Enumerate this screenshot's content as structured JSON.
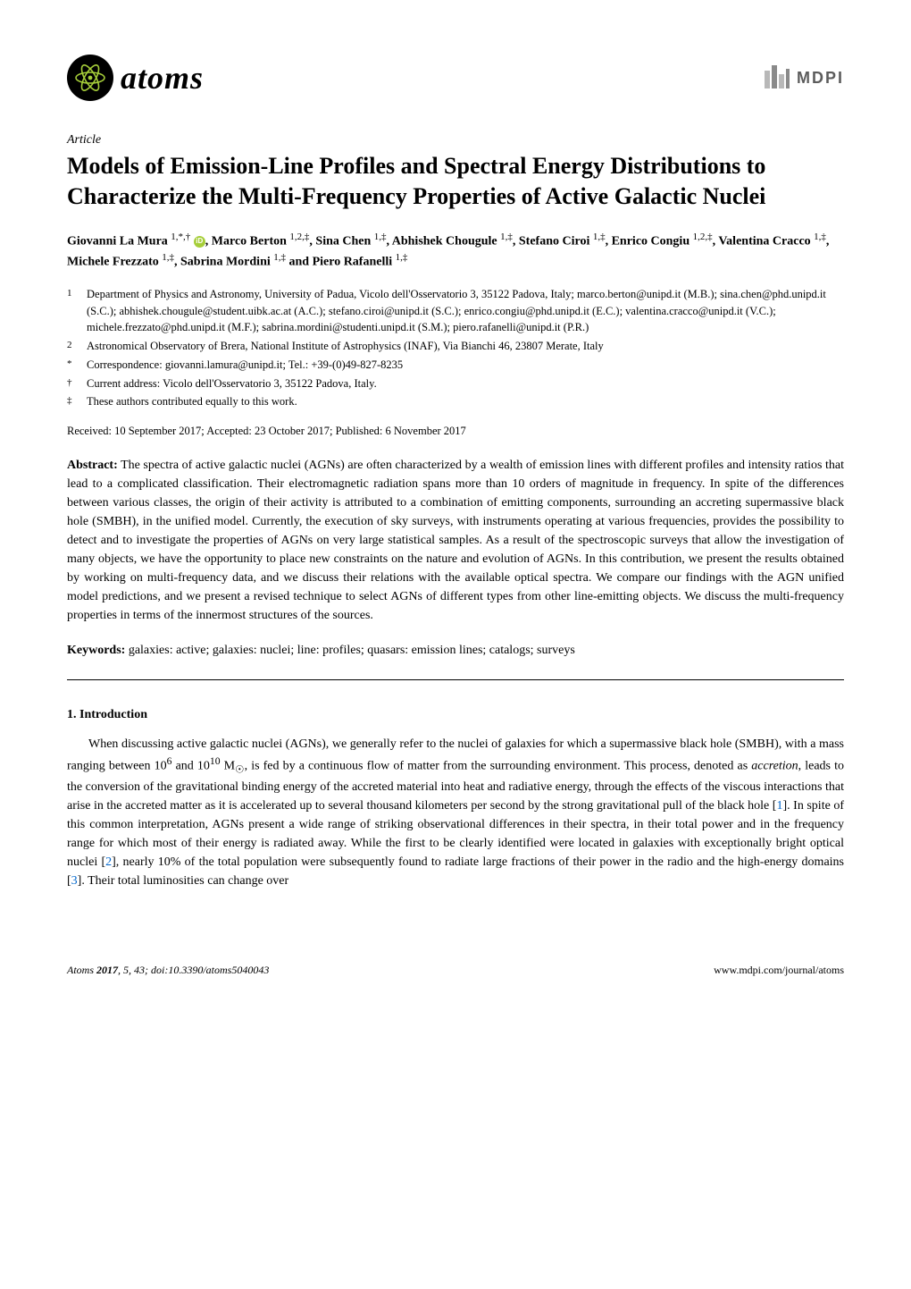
{
  "header": {
    "journal_name": "atoms",
    "publisher": "MDPI",
    "colors": {
      "atom_bg": "#000000",
      "atom_orbit": "#a6ce39",
      "mdpi_text": "#5c5c5c"
    }
  },
  "article_type": "Article",
  "title": "Models of Emission-Line Profiles and Spectral Energy Distributions to Characterize the Multi-Frequency Properties of Active Galactic Nuclei",
  "authors_html": "Giovanni La Mura <sup>1,*,†</sup> <span class='orcid-icon' data-name='orcid-icon' data-interactable='false'></span>, Marco Berton <sup>1,2,‡</sup>, Sina Chen <sup>1,‡</sup>, Abhishek Chougule <sup>1,‡</sup>, Stefano Ciroi <sup>1,‡</sup>, Enrico Congiu <sup>1,2,‡</sup>, Valentina Cracco <sup>1,‡</sup>, Michele Frezzato <sup>1,‡</sup>, Sabrina Mordini <sup>1,‡</sup> and Piero Rafanelli <sup>1,‡</sup>",
  "affiliations": [
    {
      "marker": "1",
      "text": "Department of Physics and Astronomy, University of Padua, Vicolo dell'Osservatorio 3, 35122 Padova, Italy; marco.berton@unipd.it (M.B.); sina.chen@phd.unipd.it (S.C.); abhishek.chougule@student.uibk.ac.at (A.C.); stefano.ciroi@unipd.it (S.C.); enrico.congiu@phd.unipd.it (E.C.); valentina.cracco@unipd.it (V.C.); michele.frezzato@phd.unipd.it (M.F.); sabrina.mordini@studenti.unipd.it (S.M.); piero.rafanelli@unipd.it (P.R.)"
    },
    {
      "marker": "2",
      "text": "Astronomical Observatory of Brera, National Institute of Astrophysics (INAF), Via Bianchi 46, 23807 Merate, Italy"
    },
    {
      "marker": "*",
      "text": "Correspondence: giovanni.lamura@unipd.it; Tel.: +39-(0)49-827-8235"
    },
    {
      "marker": "†",
      "text": "Current address: Vicolo dell'Osservatorio 3, 35122 Padova, Italy."
    },
    {
      "marker": "‡",
      "text": "These authors contributed equally to this work."
    }
  ],
  "received_line": "Received: 10 September 2017; Accepted: 23 October 2017; Published: 6 November 2017",
  "abstract": {
    "label": "Abstract:",
    "text": " The spectra of active galactic nuclei (AGNs) are often characterized by a wealth of emission lines with different profiles and intensity ratios that lead to a complicated classification. Their electromagnetic radiation spans more than 10 orders of magnitude in frequency. In spite of the differences between various classes, the origin of their activity is attributed to a combination of emitting components, surrounding an accreting supermassive black hole (SMBH), in the unified model. Currently, the execution of sky surveys, with instruments operating at various frequencies, provides the possibility to detect and to investigate the properties of AGNs on very large statistical samples. As a result of the spectroscopic surveys that allow the investigation of many objects, we have the opportunity to place new constraints on the nature and evolution of AGNs. In this contribution, we present the results obtained by working on multi-frequency data, and we discuss their relations with the available optical spectra. We compare our findings with the AGN unified model predictions, and we present a revised technique to select AGNs of different types from other line-emitting objects. We discuss the multi-frequency properties in terms of the innermost structures of the sources."
  },
  "keywords": {
    "label": "Keywords:",
    "text": " galaxies: active; galaxies: nuclei; line: profiles; quasars: emission lines; catalogs; surveys"
  },
  "section1": {
    "heading": "1. Introduction",
    "para1_html": "When discussing active galactic nuclei (AGNs), we generally refer to the nuclei of galaxies for which a supermassive black hole (SMBH), with a mass ranging between 10<sup>6</sup> and 10<sup>10</sup> M<sub>☉</sub>, is fed by a continuous flow of matter from the surrounding environment. This process, denoted as <i>accretion</i>, leads to the conversion of the gravitational binding energy of the accreted material into heat and radiative energy, through the effects of the viscous interactions that arise in the accreted matter as it is accelerated up to several thousand kilometers per second by the strong gravitational pull of the black hole [<a class='ref-link' data-name='reference-link-1' data-interactable='true'>1</a>]. In spite of this common interpretation, AGNs present a wide range of striking observational differences in their spectra, in their total power and in the frequency range for which most of their energy is radiated away. While the first to be clearly identified were located in galaxies with exceptionally bright optical nuclei [<a class='ref-link' data-name='reference-link-2' data-interactable='true'>2</a>], nearly 10% of the total population were subsequently found to radiate large fractions of their power in the radio and the high-energy domains [<a class='ref-link' data-name='reference-link-3' data-interactable='true'>3</a>]. Their total luminosities can change over"
  },
  "footer": {
    "left": "Atoms 2017, 5, 43; doi:10.3390/atoms5040043",
    "right": "www.mdpi.com/journal/atoms"
  }
}
